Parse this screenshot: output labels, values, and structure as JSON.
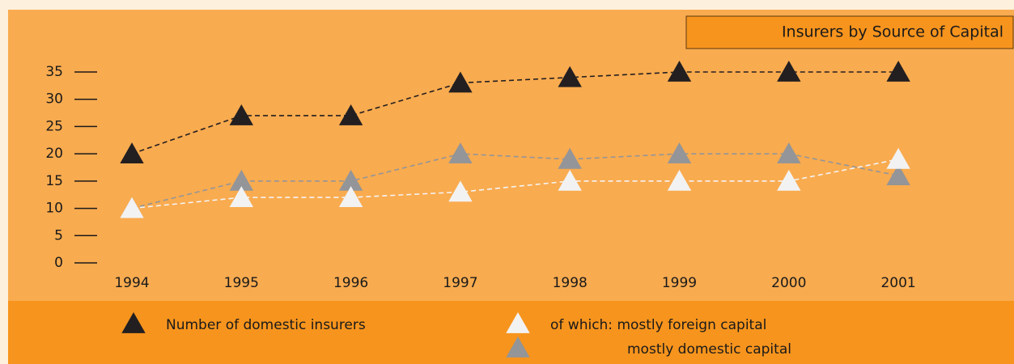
{
  "chart_data": {
    "type": "line",
    "title": "Insurers by Source of Capital",
    "categories": [
      "1994",
      "1995",
      "1996",
      "1997",
      "1998",
      "1999",
      "2000",
      "2001"
    ],
    "series": [
      {
        "name": "Number of domestic insurers",
        "color": "#231f20",
        "values": [
          20,
          27,
          27,
          33,
          34,
          35,
          35,
          35
        ]
      },
      {
        "name": "of which: mostly foreign capital",
        "color": "#f2f2f2",
        "values": [
          10,
          12,
          12,
          13,
          15,
          15,
          15,
          19
        ]
      },
      {
        "name": "mostly domestic capital",
        "color": "#939598",
        "values": [
          10,
          15,
          15,
          20,
          19,
          20,
          20,
          16
        ]
      }
    ],
    "ylim": [
      0,
      35
    ],
    "yticks": [
      0,
      5,
      10,
      15,
      20,
      25,
      30,
      35
    ]
  }
}
